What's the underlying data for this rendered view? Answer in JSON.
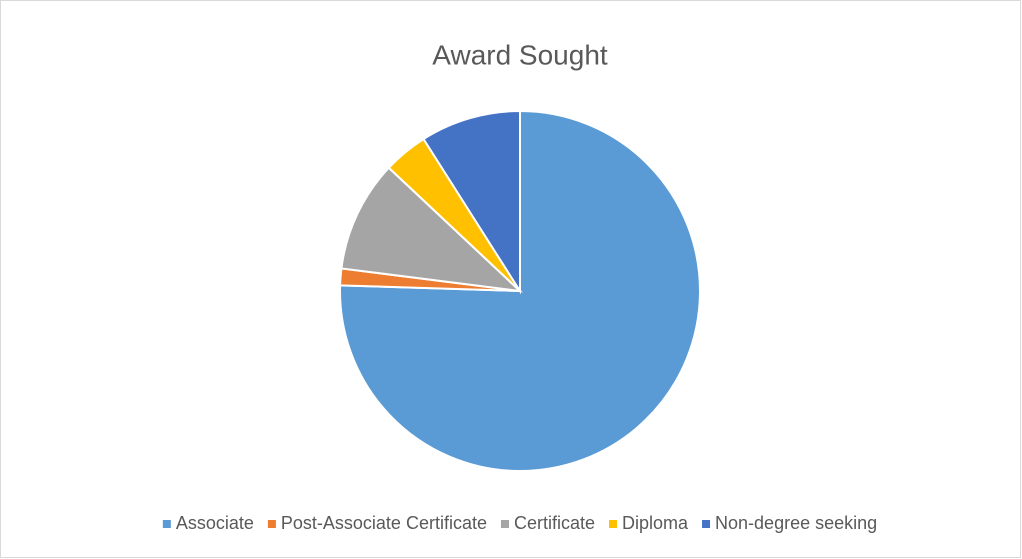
{
  "chart_data": {
    "type": "pie",
    "title": "Award Sought",
    "categories": [
      "Associate",
      "Post-Associate Certificate",
      "Certificate",
      "Diploma",
      "Non-degree seeking"
    ],
    "values": [
      75.5,
      1.5,
      10,
      4,
      9
    ],
    "colors": [
      "#5b9bd5",
      "#ed7d31",
      "#a5a5a5",
      "#ffc000",
      "#4472c4"
    ],
    "legend": "bottom"
  }
}
